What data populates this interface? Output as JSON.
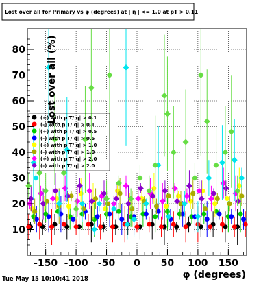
{
  "chart_data": {
    "type": "scatter",
    "title": "Lost over all for Primary vs φ (degrees) at | η | <= 1.0 at pT > 0.11",
    "xlabel": "φ (degrees)",
    "ylabel": "Lost over all (%)",
    "xlim": [
      -180,
      180
    ],
    "ylim": [
      0,
      88
    ],
    "x_ticks": [
      -150,
      -100,
      -50,
      0,
      50,
      100,
      150
    ],
    "y_ticks": [
      10,
      20,
      30,
      40,
      50,
      60,
      70,
      80
    ],
    "grid": true,
    "legend_placement": "middle-left",
    "series": [
      {
        "name": "(+) with p T/|q| > 0.1",
        "color": "#000000",
        "marker": "circle",
        "x": [
          -175,
          -155,
          -135,
          -115,
          -95,
          -75,
          -55,
          -35,
          -15,
          5,
          25,
          45,
          65,
          85,
          105,
          125,
          145,
          165
        ],
        "y": [
          11,
          11,
          12,
          11,
          11,
          12,
          11,
          11,
          12,
          11,
          12,
          11,
          11,
          12,
          11,
          12,
          11,
          11
        ]
      },
      {
        "name": "(-) with p T/|q| > 0.1",
        "color": "#ff0000",
        "marker": "circle",
        "x": [
          -178,
          -160,
          -140,
          -120,
          -100,
          -80,
          -60,
          -40,
          -20,
          0,
          20,
          40,
          60,
          80,
          100,
          120,
          140,
          160,
          178
        ],
        "y": [
          11,
          12,
          11,
          12,
          11,
          12,
          11,
          11,
          12,
          11,
          12,
          11,
          12,
          11,
          12,
          11,
          12,
          11,
          12
        ]
      },
      {
        "name": "(+) with p T/|q| > 0.5",
        "color": "#00cc00",
        "marker": "circle",
        "x": [
          -170,
          -150,
          -130,
          -110,
          -90,
          -70,
          -50,
          -30,
          -10,
          10,
          30,
          50,
          70,
          90,
          110,
          130,
          150,
          170
        ],
        "y": [
          15,
          16,
          17,
          15,
          16,
          14,
          16,
          17,
          15,
          16,
          15,
          17,
          16,
          15,
          16,
          17,
          15,
          16
        ]
      },
      {
        "name": "(-) with p T/|q| > 0.5",
        "color": "#0000ff",
        "marker": "circle",
        "x": [
          -165,
          -145,
          -125,
          -105,
          -85,
          -65,
          -45,
          -25,
          -5,
          15,
          35,
          55,
          75,
          95,
          115,
          135,
          155,
          175
        ],
        "y": [
          14,
          15,
          16,
          14,
          17,
          15,
          16,
          14,
          15,
          16,
          17,
          14,
          16,
          15,
          14,
          16,
          15,
          14
        ]
      },
      {
        "name": "(+) with p T/|q| > 1.0",
        "color": "#ffff00",
        "marker": "circle",
        "x": [
          -172,
          -152,
          -132,
          -112,
          -92,
          -72,
          -52,
          -32,
          -12,
          8,
          28,
          48,
          68,
          88,
          108,
          128,
          148,
          168
        ],
        "y": [
          18,
          20,
          22,
          19,
          24,
          21,
          18,
          25,
          20,
          22,
          26,
          19,
          23,
          21,
          25,
          20,
          22,
          27
        ]
      },
      {
        "name": "(-) with p T/|q| > 1.0",
        "color": "#aaaa00",
        "marker": "circle",
        "x": [
          -168,
          -148,
          -128,
          -108,
          -88,
          -68,
          -48,
          -28,
          -8,
          12,
          32,
          52,
          72,
          92,
          112,
          132,
          152,
          172
        ],
        "y": [
          17,
          21,
          19,
          23,
          18,
          22,
          20,
          24,
          18,
          21,
          19,
          23,
          20,
          24,
          18,
          22,
          20,
          23
        ]
      },
      {
        "name": "(+) with p T/|q| > 2.0",
        "color": "#ff00ff",
        "marker": "diamond",
        "x": [
          -176,
          -158,
          -138,
          -118,
          -98,
          -78,
          -58,
          -38,
          -18,
          2,
          22,
          42,
          62,
          82,
          102,
          122,
          142,
          162
        ],
        "y": [
          20,
          24,
          22,
          26,
          21,
          25,
          23,
          20,
          27,
          22,
          24,
          21,
          26,
          23,
          25,
          22,
          28,
          24
        ]
      },
      {
        "name": "(-) with p T/|q| > 2.0",
        "color": "#8800cc",
        "marker": "diamond",
        "x": [
          -174,
          -154,
          -134,
          -114,
          -94,
          -74,
          -54,
          -34,
          -14,
          6,
          26,
          46,
          66,
          86,
          106,
          126,
          146,
          166
        ],
        "y": [
          22,
          20,
          25,
          23,
          27,
          21,
          24,
          22,
          20,
          26,
          23,
          25,
          21,
          27,
          22,
          24,
          26,
          21
        ]
      },
      {
        "name": "cyan-points",
        "color": "#00e5ee",
        "marker": "diamond",
        "x": [
          -170,
          -166,
          -145,
          -128,
          -115,
          -90,
          -70,
          -62,
          -38,
          -18,
          -16,
          -5,
          15,
          35,
          52,
          78,
          100,
          118,
          140,
          160,
          172
        ],
        "y": [
          36,
          30,
          73,
          20,
          41,
          20,
          10,
          20,
          18,
          73,
          12,
          14,
          20,
          35,
          15,
          20,
          15,
          30,
          36,
          37,
          30
        ]
      },
      {
        "name": "green-points",
        "color": "#66dd44",
        "marker": "diamond",
        "x": [
          -178,
          -160,
          -150,
          -135,
          -120,
          -100,
          -85,
          -75,
          -50,
          -45,
          -30,
          -10,
          5,
          20,
          30,
          45,
          50,
          60,
          80,
          95,
          105,
          115,
          130,
          145,
          155,
          165
        ],
        "y": [
          27,
          32,
          25,
          45,
          32,
          18,
          45,
          65,
          22,
          70,
          28,
          22,
          30,
          25,
          35,
          62,
          55,
          40,
          44,
          30,
          70,
          52,
          35,
          40,
          48,
          25
        ]
      }
    ]
  },
  "legend": [
    {
      "label": "(+) with p T/|q| > 0.1",
      "color": "#000000",
      "marker": "circle"
    },
    {
      "label": "(-) with p T/|q| > 0.1",
      "color": "#ff0000",
      "marker": "circle"
    },
    {
      "label": "(+) with p T/|q| > 0.5",
      "color": "#00cc00",
      "marker": "circle"
    },
    {
      "label": "(-) with p T/|q| > 0.5",
      "color": "#0000ff",
      "marker": "circle"
    },
    {
      "label": "(+) with p T/|q| > 1.0",
      "color": "#ffff00",
      "marker": "circle"
    },
    {
      "label": "(-) with p T/|q| > 1.0",
      "color": "#aaaa00",
      "marker": "circle"
    },
    {
      "label": "(+) with p T/|q| > 2.0",
      "color": "#ff00ff",
      "marker": "diamond"
    },
    {
      "label": "(-) with p T/|q| > 2.0",
      "color": "#8800cc",
      "marker": "diamond"
    }
  ],
  "footer": {
    "date": "Tue May 15 10:10:41 2018"
  },
  "colors": {
    "background": "#ffffff",
    "frame": "#000000",
    "grid": "#000000"
  }
}
